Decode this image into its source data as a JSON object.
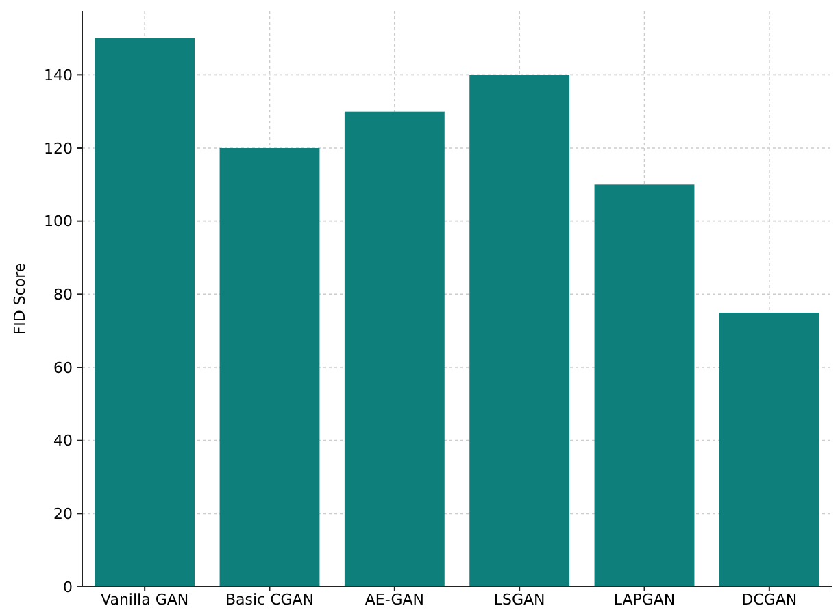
{
  "chart_data": {
    "type": "bar",
    "ylabel": "FID Score",
    "categories": [
      "Vanilla GAN",
      "Basic CGAN",
      "AE-GAN",
      "LSGAN",
      "LAPGAN",
      "DCGAN"
    ],
    "values": [
      150,
      120,
      130,
      140,
      110,
      75
    ],
    "color": "#0f7f7c",
    "ylim": [
      0,
      157.5
    ],
    "yticks": [
      0,
      20,
      40,
      60,
      80,
      100,
      120,
      140
    ],
    "grid": true
  }
}
